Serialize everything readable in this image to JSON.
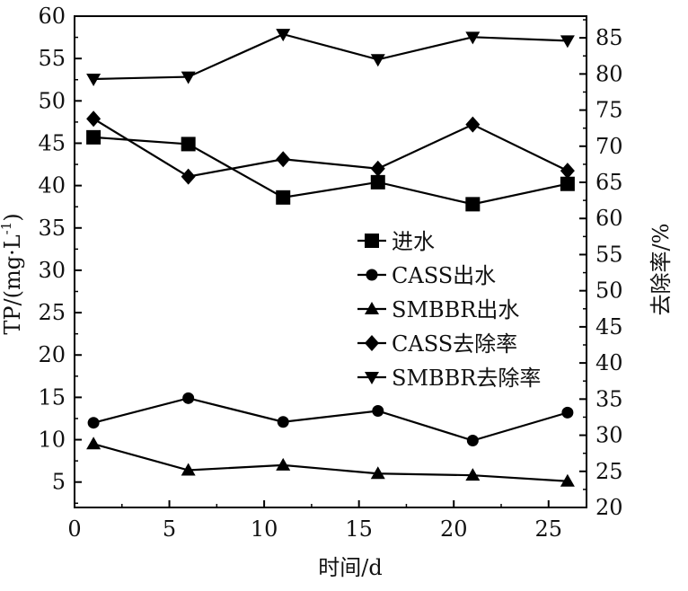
{
  "chart_data": {
    "type": "line",
    "xlabel": "时间/d",
    "ylabel_left": "TP/(mg·L",
    "ylabel_left_sup": "-1",
    "ylabel_left_tail": ")",
    "ylabel_right": "去除率/%",
    "xlim": [
      0,
      27
    ],
    "ylim_left": [
      2,
      60
    ],
    "ylim_right": [
      20,
      88
    ],
    "x_ticks": [
      0,
      5,
      10,
      15,
      20,
      25
    ],
    "y_ticks_left": [
      5,
      10,
      15,
      20,
      25,
      30,
      35,
      40,
      45,
      50,
      55,
      60
    ],
    "y_ticks_right": [
      20,
      25,
      30,
      35,
      40,
      45,
      50,
      55,
      60,
      65,
      70,
      75,
      80,
      85
    ],
    "x_tick_labels": [
      "0",
      "5",
      "10",
      "15",
      "20",
      "25"
    ],
    "y_tick_labels_left": [
      "5",
      "10",
      "15",
      "20",
      "25",
      "30",
      "35",
      "40",
      "45",
      "50",
      "55",
      "60"
    ],
    "y_tick_labels_right": [
      "20",
      "25",
      "30",
      "35",
      "40",
      "45",
      "50",
      "55",
      "60",
      "65",
      "70",
      "75",
      "80",
      "85"
    ],
    "x": [
      1,
      6,
      11,
      16,
      21,
      26
    ],
    "series": [
      {
        "name": "进水",
        "axis": "left",
        "marker": "square",
        "values": [
          45.7,
          44.9,
          38.6,
          40.4,
          37.8,
          40.2
        ]
      },
      {
        "name": "CASS出水",
        "axis": "left",
        "marker": "circle",
        "values": [
          12.0,
          14.9,
          12.1,
          13.4,
          9.9,
          13.2
        ]
      },
      {
        "name": "SMBBR出水",
        "axis": "left",
        "marker": "triangle-up",
        "values": [
          9.5,
          6.4,
          7.0,
          6.0,
          5.8,
          5.1
        ]
      },
      {
        "name": "CASS去除率",
        "axis": "right",
        "marker": "diamond",
        "values": [
          73.8,
          65.8,
          68.2,
          66.9,
          73.0,
          66.6
        ]
      },
      {
        "name": "SMBBR去除率",
        "axis": "right",
        "marker": "triangle-down",
        "values": [
          79.3,
          79.6,
          85.5,
          82.0,
          85.1,
          84.6
        ]
      }
    ],
    "legend_position": "center-right",
    "grid": false,
    "color": "#000000"
  }
}
